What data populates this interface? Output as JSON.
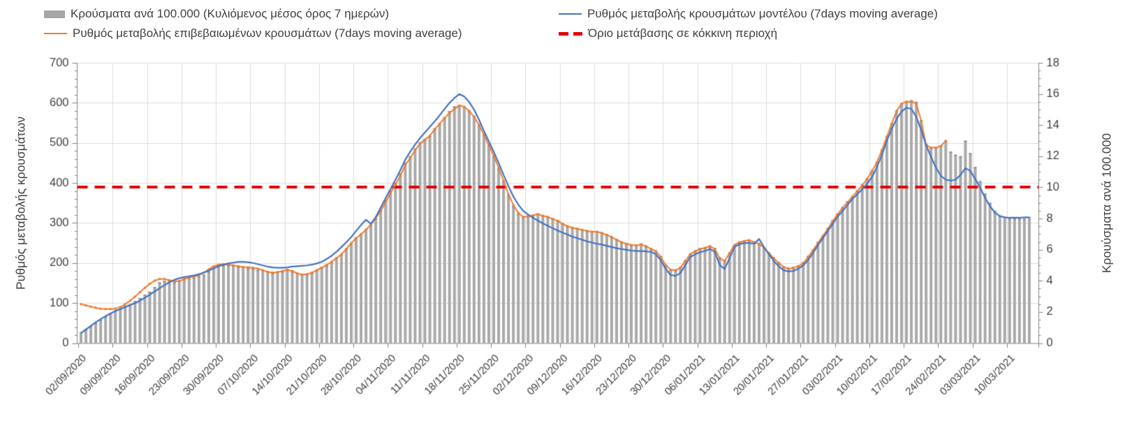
{
  "chart_data": {
    "type": "combo-bar-line",
    "legend": [
      {
        "label": "Κρούσματα ανά 100.000 (Κυλιόμενος μέσος όρος 7 ημερών)",
        "swatch": "gray-bar",
        "color": "#a6a6a6"
      },
      {
        "label": "Ρυθμός μεταβολής επιβεβαιωμένων κρουσμάτων (7days moving average)",
        "swatch": "orange-line",
        "color": "#ed7d31"
      },
      {
        "label": "Ρυθμός μεταβολής κρουσμάτων μοντέλου (7days moving average)",
        "swatch": "blue-line",
        "color": "#4472c4"
      },
      {
        "label": "Όριο μετάβασης σε κόκκινη περιοχή",
        "swatch": "red-dash",
        "color": "#e50000"
      }
    ],
    "left_axis": {
      "title": "Ρυθμός μεταβολής κρουσμάτων",
      "min": 0,
      "max": 700,
      "major_step": 100,
      "minor_step": 20,
      "tick_labels": [
        "0",
        "100",
        "200",
        "300",
        "400",
        "500",
        "600",
        "700"
      ]
    },
    "right_axis": {
      "title": "Κρουύσματα ανά 100.000",
      "min": 0,
      "max": 18,
      "major_step": 2,
      "minor_step": 0.5,
      "tick_labels": [
        "0",
        "2",
        "4",
        "6",
        "8",
        "10",
        "12",
        "14",
        "16",
        "18"
      ]
    },
    "x_tick_labels": [
      "02/09/2020",
      "09/09/2020",
      "16/09/2020",
      "23/09/2020",
      "30/09/2020",
      "07/10/2020",
      "14/10/2020",
      "21/10/2020",
      "28/10/2020",
      "04/11/2020",
      "11/11/2020",
      "18/11/2020",
      "25/11/2020",
      "02/12/2020",
      "09/12/2020",
      "16/12/2020",
      "23/12/2020",
      "30/12/2020",
      "06/01/2021",
      "13/01/2021",
      "20/01/2021",
      "27/01/2021",
      "03/02/2021",
      "10/02/2021",
      "17/02/2021",
      "24/02/2021",
      "03/03/2021",
      "10/03/2021"
    ],
    "days_per_tick": 7,
    "threshold": {
      "value_right_axis": 10,
      "label": "Όριο μετάβασης σε κόκκινη περιοχή",
      "color": "#e50000",
      "style": "dashed"
    },
    "grid": {
      "horizontal": true,
      "vertical": true,
      "color": "#dcdcdc"
    },
    "series": [
      {
        "name": "Κρούσματα ανά 100.000 (Κυλιόμενος μέσος όρος 7 ημερών)",
        "type": "bar",
        "axis": "right",
        "color": "#a6a6a6",
        "values": [
          0.7,
          0.9,
          1.1,
          1.3,
          1.5,
          1.7,
          1.9,
          2.1,
          2.2,
          2.4,
          2.5,
          2.7,
          2.9,
          3.1,
          3.3,
          3.6,
          3.9,
          4.0,
          4.0,
          3.9,
          4.0,
          4.1,
          4.2,
          4.2,
          4.3,
          4.4,
          4.6,
          4.8,
          5.0,
          5.0,
          5.0,
          5.0,
          4.9,
          4.9,
          4.8,
          4.8,
          4.7,
          4.7,
          4.6,
          4.5,
          4.6,
          4.6,
          4.7,
          4.6,
          4.5,
          4.4,
          4.4,
          4.5,
          4.7,
          4.9,
          5.0,
          5.2,
          5.5,
          5.7,
          6.1,
          6.4,
          6.8,
          7.0,
          7.3,
          7.6,
          8.0,
          8.5,
          9.2,
          9.8,
          10.3,
          10.9,
          11.6,
          12.0,
          12.5,
          12.9,
          13.1,
          13.3,
          13.8,
          14.1,
          14.5,
          14.9,
          15.2,
          15.3,
          15.2,
          14.9,
          14.6,
          14.0,
          13.4,
          12.7,
          12.0,
          11.2,
          10.4,
          9.5,
          8.8,
          8.3,
          8.1,
          8.2,
          8.2,
          8.3,
          8.2,
          8.1,
          8.0,
          7.9,
          7.7,
          7.5,
          7.4,
          7.4,
          7.3,
          7.2,
          7.2,
          7.2,
          7.1,
          7.0,
          6.8,
          6.7,
          6.5,
          6.4,
          6.3,
          6.3,
          6.4,
          6.2,
          6.1,
          5.9,
          5.6,
          5.0,
          4.7,
          4.7,
          4.9,
          5.3,
          5.7,
          5.9,
          6.1,
          6.1,
          6.2,
          6.1,
          5.5,
          5.3,
          5.8,
          6.3,
          6.5,
          6.6,
          6.6,
          6.5,
          6.4,
          6.1,
          5.8,
          5.5,
          5.2,
          4.9,
          4.8,
          4.9,
          5.0,
          5.2,
          5.6,
          6.0,
          6.5,
          6.9,
          7.4,
          7.9,
          8.3,
          8.7,
          9.1,
          9.4,
          9.8,
          10.2,
          10.6,
          11.1,
          11.6,
          12.4,
          13.3,
          14.1,
          14.9,
          15.4,
          15.5,
          15.6,
          15.5,
          14.3,
          12.8,
          12.6,
          12.6,
          12.7,
          13.0,
          12.3,
          12.1,
          12.0,
          13.0,
          12.2,
          11.3,
          10.4,
          9.6,
          9.0,
          8.5,
          8.2,
          8.1,
          8.0,
          8.0,
          8.0,
          8.0,
          8.1
        ]
      },
      {
        "name": "Ρυθμός μεταβολής επιβεβαιωμένων κρουσμάτων (7days moving average)",
        "type": "line",
        "axis": "left",
        "color": "#ed7d31",
        "markers": true,
        "values": [
          97,
          94,
          91,
          88,
          86,
          85,
          85,
          86,
          90,
          97,
          106,
          116,
          127,
          138,
          148,
          156,
          160,
          160,
          157,
          154,
          155,
          160,
          164,
          166,
          170,
          176,
          184,
          192,
          196,
          197,
          196,
          194,
          192,
          190,
          189,
          188,
          186,
          182,
          178,
          176,
          177,
          180,
          183,
          180,
          174,
          171,
          172,
          176,
          182,
          188,
          195,
          203,
          212,
          222,
          235,
          250,
          262,
          272,
          283,
          296,
          312,
          330,
          352,
          375,
          396,
          418,
          445,
          462,
          482,
          498,
          508,
          518,
          534,
          548,
          562,
          575,
          585,
          593,
          590,
          580,
          565,
          545,
          520,
          494,
          468,
          438,
          405,
          372,
          345,
          325,
          315,
          316,
          319,
          322,
          318,
          315,
          310,
          305,
          298,
          292,
          288,
          285,
          283,
          280,
          278,
          278,
          275,
          270,
          265,
          258,
          252,
          248,
          245,
          244,
          246,
          242,
          235,
          230,
          215,
          195,
          183,
          182,
          188,
          205,
          222,
          230,
          235,
          238,
          242,
          235,
          212,
          205,
          225,
          245,
          252,
          255,
          257,
          252,
          248,
          238,
          225,
          212,
          200,
          190,
          186,
          188,
          192,
          200,
          215,
          232,
          250,
          268,
          285,
          305,
          322,
          338,
          352,
          366,
          380,
          394,
          410,
          430,
          452,
          482,
          515,
          548,
          580,
          598,
          603,
          603,
          598,
          555,
          495,
          488,
          488,
          492,
          505,
          null,
          null,
          null,
          null,
          null,
          null,
          null,
          null,
          null,
          null,
          null,
          null,
          null,
          null,
          null,
          null,
          null
        ]
      },
      {
        "name": "Ρυθμός μεταβολής κρουσμάτων μοντέλου (7days moving average)",
        "type": "line",
        "axis": "left",
        "color": "#4472c4",
        "markers": false,
        "values": [
          25,
          34,
          43,
          52,
          60,
          67,
          74,
          80,
          85,
          90,
          95,
          100,
          106,
          113,
          121,
          129,
          137,
          145,
          152,
          158,
          162,
          165,
          167,
          169,
          172,
          176,
          181,
          187,
          192,
          196,
          199,
          201,
          203,
          203,
          202,
          200,
          197,
          194,
          191,
          189,
          188,
          188,
          189,
          191,
          192,
          193,
          194,
          196,
          199,
          203,
          210,
          218,
          228,
          240,
          252,
          265,
          280,
          295,
          308,
          298,
          315,
          338,
          362,
          385,
          408,
          432,
          458,
          478,
          496,
          512,
          526,
          540,
          554,
          569,
          585,
          600,
          612,
          622,
          616,
          602,
          583,
          558,
          530,
          504,
          478,
          450,
          420,
          392,
          366,
          346,
          330,
          321,
          313,
          306,
          299,
          293,
          287,
          281,
          276,
          271,
          266,
          262,
          258,
          254,
          251,
          248,
          246,
          243,
          240,
          237,
          235,
          233,
          231,
          230,
          230,
          229,
          228,
          222,
          207,
          185,
          170,
          168,
          175,
          195,
          215,
          222,
          227,
          230,
          235,
          228,
          195,
          185,
          212,
          240,
          247,
          250,
          250,
          248,
          260,
          240,
          222,
          205,
          192,
          182,
          179,
          180,
          186,
          194,
          208,
          225,
          245,
          262,
          280,
          298,
          316,
          330,
          345,
          360,
          372,
          385,
          398,
          415,
          440,
          470,
          505,
          535,
          560,
          578,
          588,
          585,
          565,
          532,
          495,
          465,
          438,
          418,
          408,
          406,
          408,
          420,
          437,
          430,
          410,
          388,
          363,
          342,
          326,
          317,
          314,
          313,
          313,
          313,
          314,
          314
        ]
      }
    ]
  }
}
